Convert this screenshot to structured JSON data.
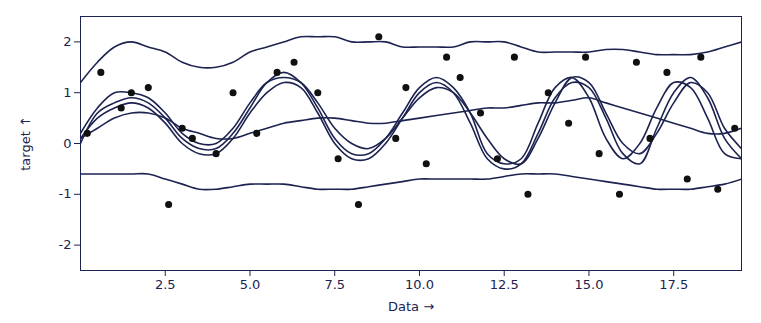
{
  "chart_data": {
    "type": "line",
    "x_label": "Data →",
    "y_label": "target ↑",
    "xlim": [
      0,
      19.5
    ],
    "ylim": [
      -2.5,
      2.5
    ],
    "xticks": [
      2.5,
      {
        "value": 5,
        "label": "5.0"
      },
      7.5,
      {
        "value": 10,
        "label": "10.0"
      },
      12.5,
      {
        "value": 15,
        "label": "15.0"
      },
      17.5
    ],
    "yticks": [
      -2,
      -1,
      0,
      1,
      2
    ],
    "x": [
      0,
      0.5,
      1,
      1.5,
      2,
      2.5,
      3,
      3.5,
      4,
      4.5,
      5,
      5.5,
      6,
      6.5,
      7,
      7.5,
      8,
      8.5,
      9,
      9.5,
      10,
      10.5,
      11,
      11.5,
      12,
      12.5,
      13,
      13.5,
      14,
      14.5,
      15,
      15.5,
      16,
      16.5,
      17,
      17.5,
      18,
      18.5,
      19,
      19.5
    ],
    "series": [
      {
        "color": "#1c2350",
        "values": [
          1.2,
          1.6,
          1.9,
          2.0,
          1.9,
          1.8,
          1.6,
          1.5,
          1.5,
          1.6,
          1.8,
          1.9,
          2.0,
          2.1,
          2.1,
          2.1,
          2.0,
          2.0,
          2.0,
          1.9,
          1.9,
          1.9,
          1.9,
          2.0,
          2.0,
          2.0,
          1.9,
          1.8,
          1.8,
          1.8,
          1.8,
          1.85,
          1.85,
          1.8,
          1.75,
          1.75,
          1.75,
          1.8,
          1.9,
          2.0
        ]
      },
      {
        "color": "#1c2350",
        "values": [
          -0.6,
          -0.6,
          -0.6,
          -0.6,
          -0.6,
          -0.7,
          -0.8,
          -0.9,
          -0.9,
          -0.85,
          -0.8,
          -0.8,
          -0.8,
          -0.85,
          -0.9,
          -0.9,
          -0.9,
          -0.85,
          -0.8,
          -0.75,
          -0.7,
          -0.7,
          -0.7,
          -0.7,
          -0.7,
          -0.65,
          -0.6,
          -0.6,
          -0.6,
          -0.65,
          -0.7,
          -0.75,
          -0.8,
          -0.85,
          -0.9,
          -0.9,
          -0.9,
          -0.85,
          -0.8,
          -0.7
        ]
      },
      {
        "color": "#1c2350",
        "values": [
          0.0,
          0.6,
          0.8,
          0.9,
          0.8,
          0.5,
          0.1,
          -0.1,
          -0.1,
          0.2,
          0.7,
          1.2,
          1.4,
          1.2,
          0.7,
          0.1,
          -0.2,
          -0.2,
          0.1,
          0.6,
          1.1,
          1.3,
          1.1,
          0.6,
          -0.2,
          -0.4,
          -0.3,
          0.4,
          1.1,
          1.3,
          0.9,
          0.1,
          -0.3,
          0.0,
          0.7,
          1.2,
          1.1,
          0.5,
          -0.2,
          -0.3
        ]
      },
      {
        "color": "#1c2350",
        "values": [
          0.1,
          0.5,
          0.7,
          0.8,
          0.7,
          0.4,
          0.0,
          -0.2,
          -0.2,
          0.1,
          0.6,
          1.0,
          1.2,
          1.1,
          0.6,
          0.0,
          -0.3,
          -0.3,
          0.0,
          0.5,
          1.0,
          1.2,
          1.0,
          0.4,
          -0.3,
          -0.5,
          -0.4,
          0.2,
          0.9,
          1.2,
          1.1,
          0.5,
          -0.2,
          -0.4,
          0.3,
          1.0,
          1.3,
          0.9,
          0.1,
          -0.3
        ]
      },
      {
        "color": "#1c2350",
        "values": [
          0.2,
          0.7,
          1.0,
          1.0,
          0.9,
          0.6,
          0.2,
          0.0,
          0.0,
          0.3,
          0.8,
          1.2,
          1.3,
          1.2,
          0.8,
          0.3,
          0.0,
          -0.1,
          0.1,
          0.5,
          0.9,
          1.1,
          1.0,
          0.6,
          0.1,
          -0.3,
          -0.4,
          0.1,
          0.8,
          1.3,
          1.2,
          0.6,
          0.0,
          -0.2,
          0.2,
          0.8,
          1.2,
          1.0,
          0.3,
          -0.1
        ]
      },
      {
        "color": "#1c2350",
        "values": [
          0.1,
          0.3,
          0.5,
          0.6,
          0.6,
          0.5,
          0.3,
          0.2,
          0.1,
          0.1,
          0.2,
          0.3,
          0.4,
          0.45,
          0.5,
          0.5,
          0.45,
          0.4,
          0.4,
          0.45,
          0.5,
          0.55,
          0.6,
          0.65,
          0.7,
          0.7,
          0.75,
          0.8,
          0.8,
          0.85,
          0.9,
          0.8,
          0.7,
          0.6,
          0.5,
          0.4,
          0.3,
          0.2,
          0.2,
          0.3
        ]
      },
      {
        "type": "scatter",
        "color": "#111111",
        "x": [
          0.2,
          0.6,
          1.2,
          1.5,
          2.0,
          2.6,
          3.0,
          3.3,
          4.0,
          4.5,
          5.2,
          5.8,
          6.3,
          7.0,
          7.6,
          8.2,
          8.8,
          9.3,
          9.6,
          10.2,
          10.8,
          11.2,
          11.8,
          12.3,
          12.8,
          13.2,
          13.8,
          14.4,
          14.9,
          15.3,
          15.9,
          16.4,
          16.8,
          17.3,
          17.9,
          18.3,
          18.8,
          19.3
        ],
        "values": [
          0.2,
          1.4,
          0.7,
          1.0,
          1.1,
          -1.2,
          0.3,
          0.1,
          -0.2,
          1.0,
          0.2,
          1.4,
          1.6,
          1.0,
          -0.3,
          -1.2,
          2.1,
          0.1,
          1.1,
          -0.4,
          1.7,
          1.3,
          0.6,
          -0.3,
          1.7,
          -1.0,
          1.0,
          0.4,
          1.7,
          -0.2,
          -1.0,
          1.6,
          0.1,
          1.4,
          -0.7,
          1.7,
          -0.9,
          0.3
        ]
      }
    ]
  }
}
